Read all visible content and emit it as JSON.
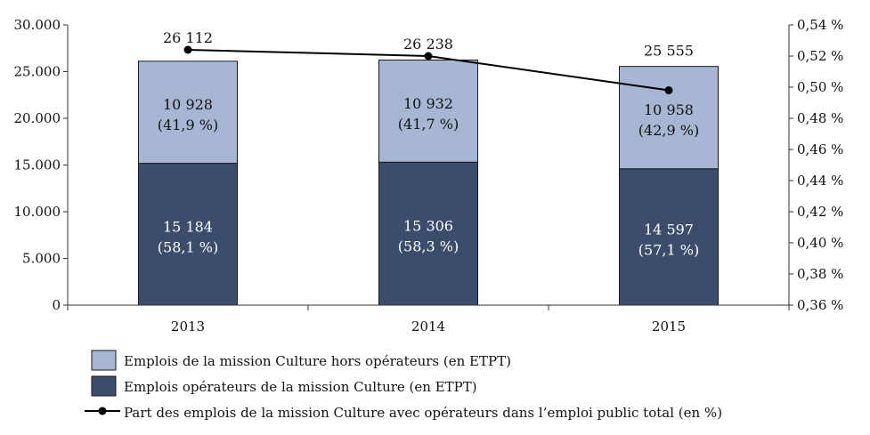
{
  "chart_data": {
    "type": "bar",
    "stacked": true,
    "categories": [
      "2013",
      "2014",
      "2015"
    ],
    "series": [
      {
        "name": "Emplois opérateurs de la mission Culture (en ETPT)",
        "axis": "left",
        "color": "#3b4d6b",
        "values": [
          15184,
          15306,
          14597
        ],
        "labels": [
          "15 184",
          "15 306",
          "14 597"
        ],
        "shares": [
          "(58,1 %)",
          "(58,3 %)",
          "(57,1 %)"
        ]
      },
      {
        "name": "Emplois de la mission Culture hors opérateurs (en ETPT)",
        "axis": "left",
        "color": "#a7b6d3",
        "values": [
          10928,
          10932,
          10958
        ],
        "labels": [
          "10 928",
          "10 932",
          "10 958"
        ],
        "shares": [
          "(41,9 %)",
          "(41,7 %)",
          "(42,9 %)"
        ]
      }
    ],
    "totals": {
      "values": [
        26112,
        26238,
        25555
      ],
      "labels": [
        "26 112",
        "26 238",
        "25 555"
      ]
    },
    "line": {
      "name": "Part des emplois de la mission Culture avec opérateurs dans l’emploi public total (en %)",
      "axis": "right",
      "color": "#000000",
      "values": [
        0.524,
        0.52,
        0.498
      ]
    },
    "y_left": {
      "ylim": [
        0,
        30000
      ],
      "ticks": [
        0,
        5000,
        10000,
        15000,
        20000,
        25000,
        30000
      ],
      "tick_labels": [
        "0",
        "5.000",
        "10.000",
        "15.000",
        "20.000",
        "25.000",
        "30.000"
      ]
    },
    "y_right": {
      "ylim": [
        0.36,
        0.54
      ],
      "ticks": [
        0.36,
        0.38,
        0.4,
        0.42,
        0.44,
        0.46,
        0.48,
        0.5,
        0.52,
        0.54
      ],
      "tick_labels": [
        "0,36 %",
        "0,38 %",
        "0,40 %",
        "0,42 %",
        "0,44 %",
        "0,46 %",
        "0,48 %",
        "0,50 %",
        "0,52 %",
        "0,54 %"
      ]
    },
    "legend_order": [
      1,
      0,
      "line"
    ],
    "legend_position": "bottom-left"
  }
}
